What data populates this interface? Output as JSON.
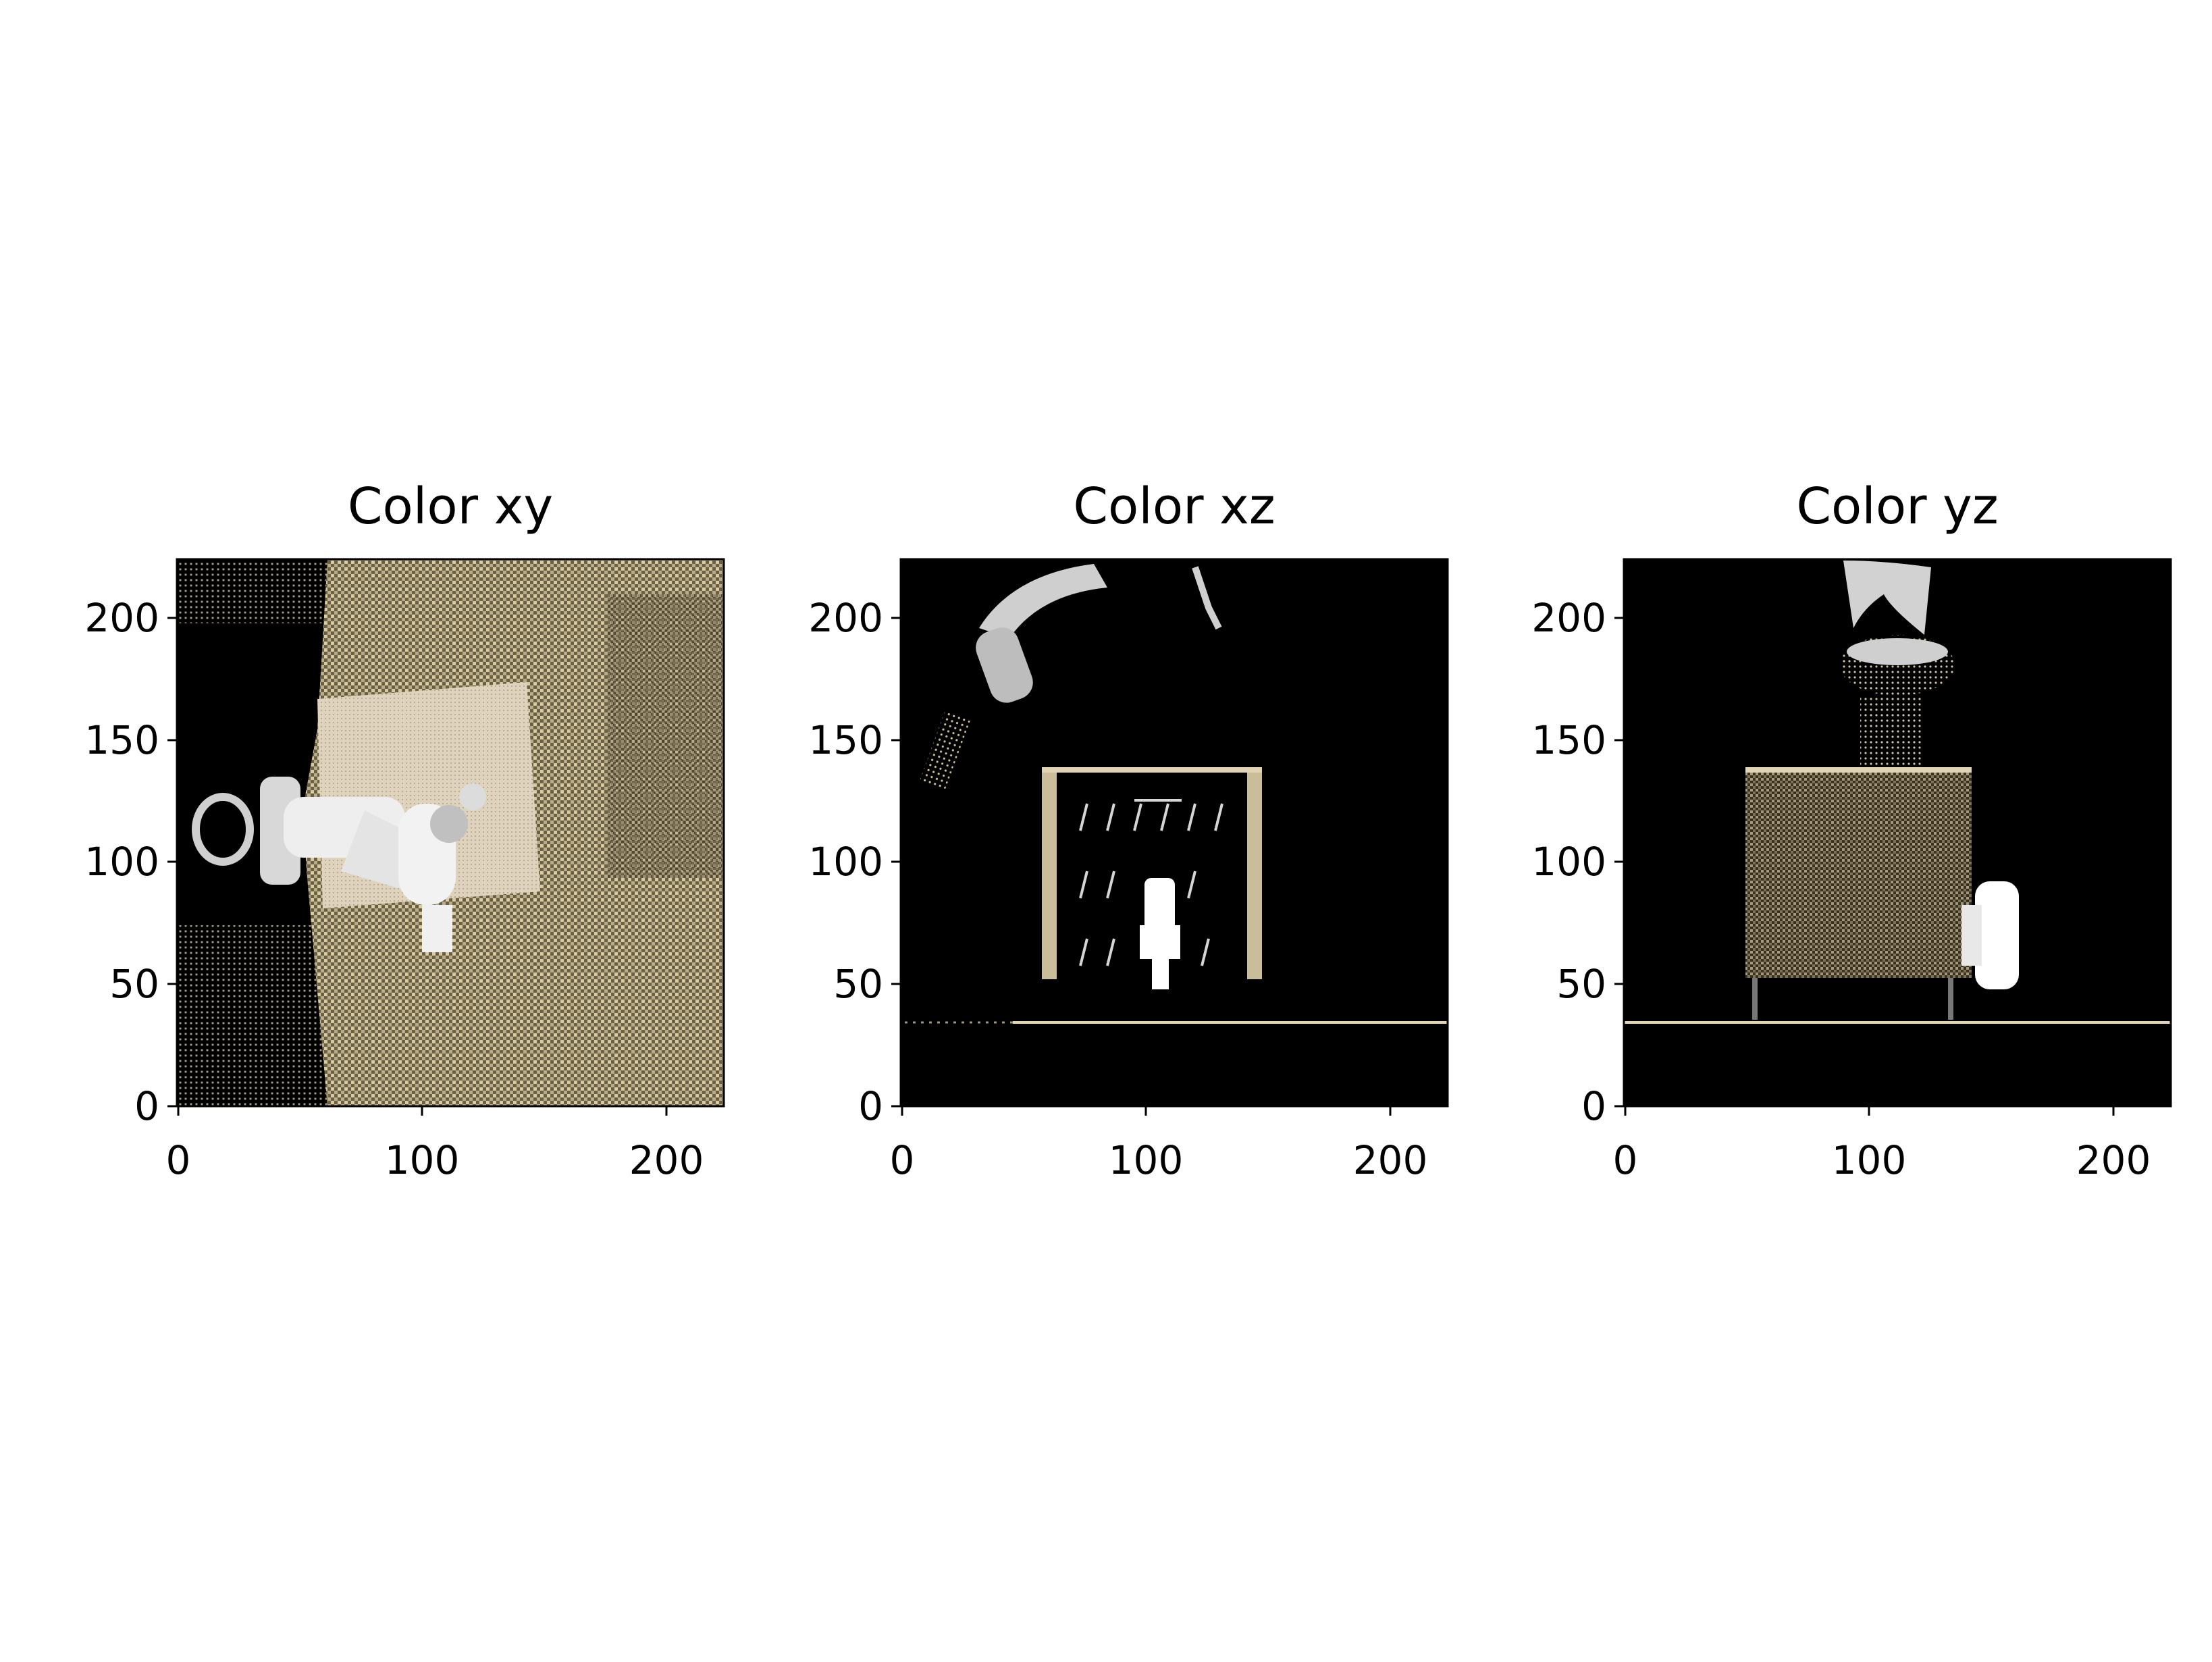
{
  "figure": {
    "panels": [
      {
        "id": "xy",
        "title": "Color xy"
      },
      {
        "id": "xz",
        "title": "Color xz"
      },
      {
        "id": "yz",
        "title": "Color yz"
      }
    ],
    "axes": {
      "x_ticks": [
        "0",
        "100",
        "200"
      ],
      "y_ticks": [
        "0",
        "50",
        "100",
        "150",
        "200"
      ],
      "range": [
        0,
        224
      ]
    },
    "colors": {
      "background_dark": "#000000",
      "table_beige": "#d8cba4",
      "box_beige": "#e2d3bc",
      "robot_white": "#e8e8e8",
      "axis": "#000000"
    }
  }
}
